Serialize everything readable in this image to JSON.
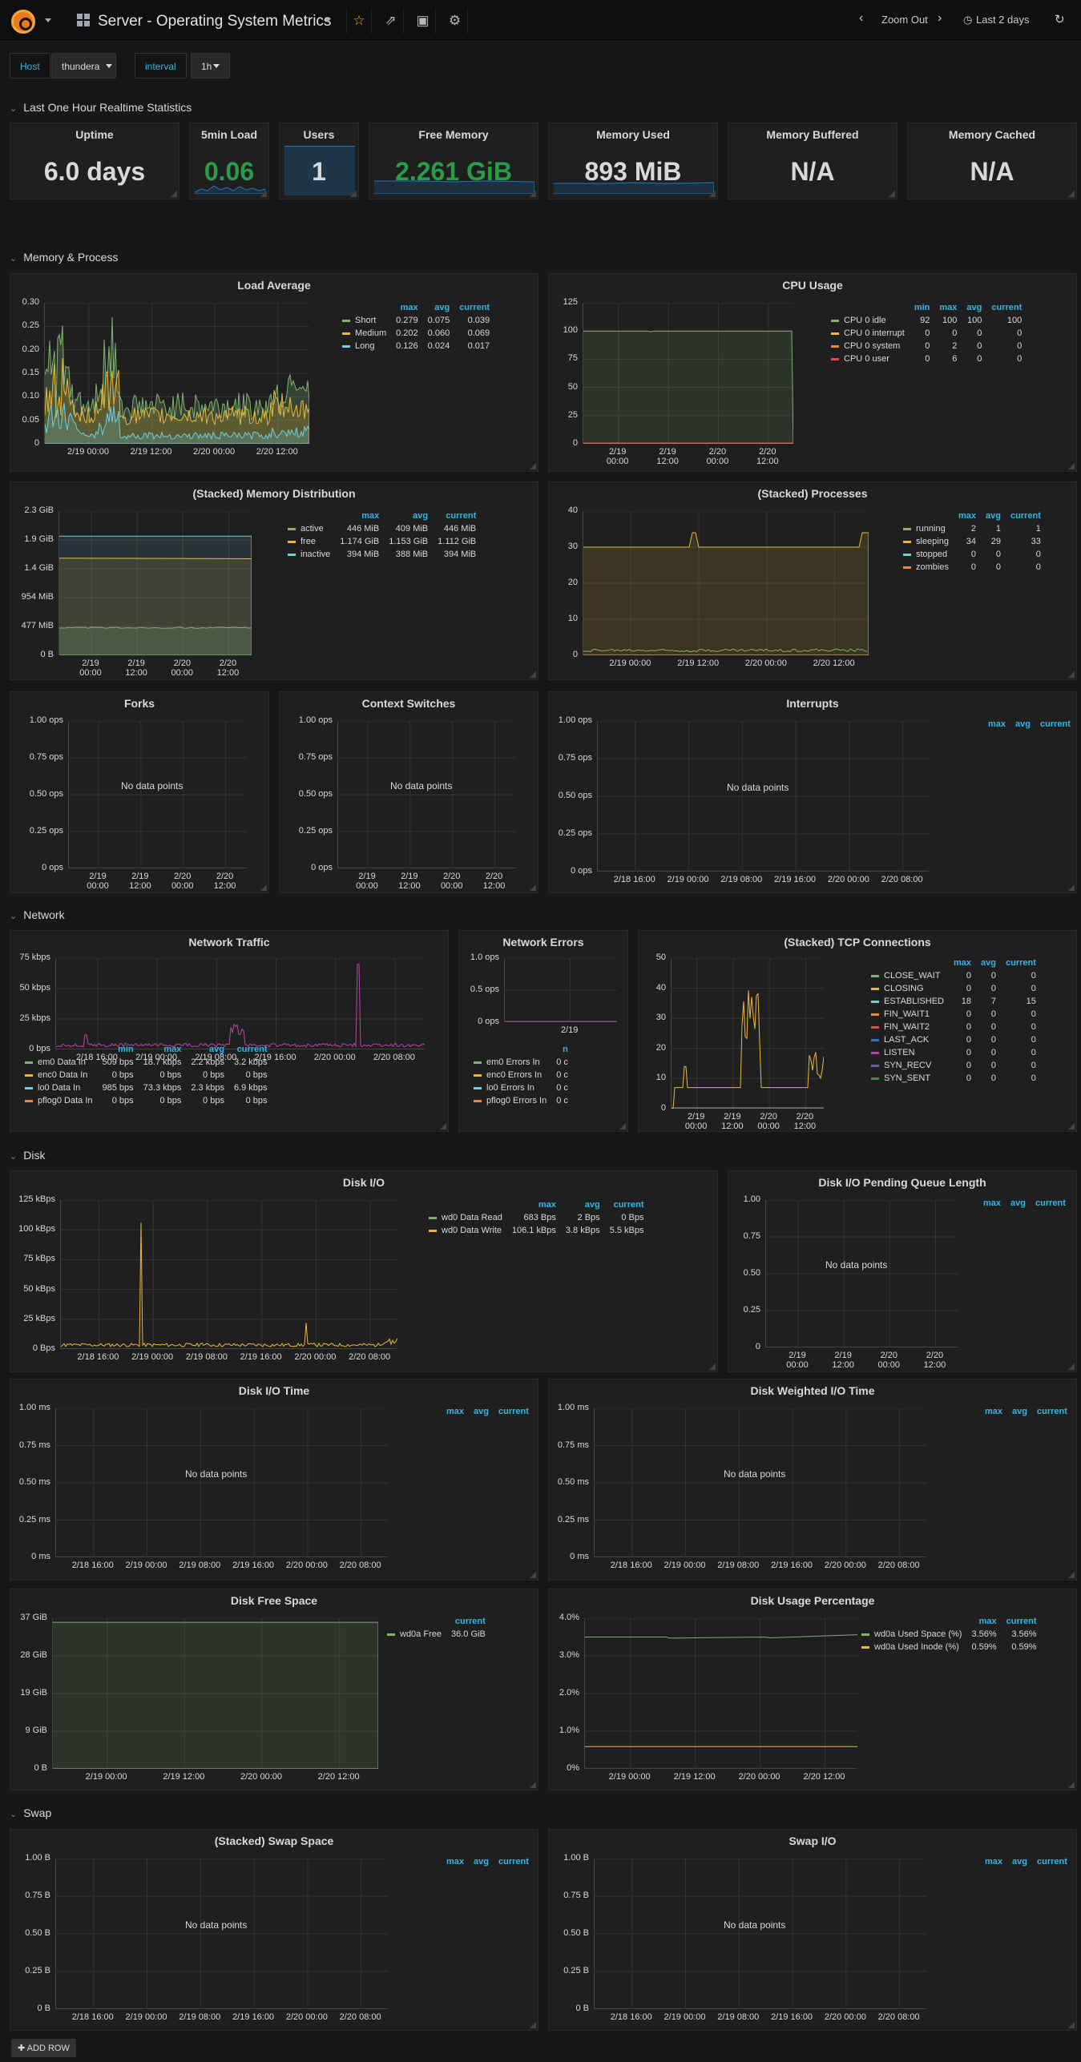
{
  "header": {
    "title": "Server - Operating System Metrics",
    "zoom_out": "Zoom Out",
    "time_range": "Last 2 days"
  },
  "variables": {
    "host_label": "Host",
    "host_value": "thundera",
    "interval_label": "interval",
    "interval_value": "1h"
  },
  "rows": {
    "realtime": "Last One Hour Realtime Statistics",
    "memory": "Memory & Process",
    "network": "Network",
    "disk": "Disk",
    "swap": "Swap"
  },
  "stats": [
    {
      "title": "Uptime",
      "value": "6.0 days",
      "color": "#d8d9da"
    },
    {
      "title": "5min Load",
      "value": "0.06",
      "color": "#299c46"
    },
    {
      "title": "Users",
      "value": "1",
      "color": "#d8d9da"
    },
    {
      "title": "Free Memory",
      "value": "2.261 GiB",
      "color": "#299c46"
    },
    {
      "title": "Memory Used",
      "value": "893 MiB",
      "color": "#d8d9da"
    },
    {
      "title": "Memory Buffered",
      "value": "N/A",
      "color": "#d8d9da"
    },
    {
      "title": "Memory Cached",
      "value": "N/A",
      "color": "#d8d9da"
    }
  ],
  "panels": {
    "load_average": {
      "title": "Load Average",
      "y_ticks": [
        "0.30",
        "0.25",
        "0.20",
        "0.15",
        "0.10",
        "0.05",
        "0"
      ],
      "x_ticks": [
        "2/19 00:00",
        "2/19 12:00",
        "2/20 00:00",
        "2/20 12:00"
      ],
      "legend_headers": [
        "max",
        "avg",
        "current"
      ],
      "legend": [
        {
          "name": "Short",
          "color": "#7eb26d",
          "vals": [
            "0.279",
            "0.075",
            "0.039"
          ]
        },
        {
          "name": "Medium",
          "color": "#eab839",
          "vals": [
            "0.202",
            "0.060",
            "0.069"
          ]
        },
        {
          "name": "Long",
          "color": "#6ed0e0",
          "vals": [
            "0.126",
            "0.024",
            "0.017"
          ]
        }
      ]
    },
    "cpu_usage": {
      "title": "CPU Usage",
      "y_ticks": [
        "125",
        "100",
        "75",
        "50",
        "25",
        "0"
      ],
      "x_ticks": [
        "2/19\n00:00",
        "2/19\n12:00",
        "2/20\n00:00",
        "2/20\n12:00"
      ],
      "legend_headers": [
        "min",
        "max",
        "avg",
        "current"
      ],
      "legend": [
        {
          "name": "CPU 0 idle",
          "color": "#7eb26d",
          "vals": [
            "92",
            "100",
            "100",
            "100"
          ]
        },
        {
          "name": "CPU 0 interrupt",
          "color": "#eab839",
          "vals": [
            "0",
            "0",
            "0",
            "0"
          ]
        },
        {
          "name": "CPU 0 system",
          "color": "#ef843c",
          "vals": [
            "0",
            "2",
            "0",
            "0"
          ]
        },
        {
          "name": "CPU 0 user",
          "color": "#e24d42",
          "vals": [
            "0",
            "6",
            "0",
            "0"
          ]
        }
      ]
    },
    "memory_dist": {
      "title": "(Stacked) Memory Distribution",
      "y_ticks": [
        "2.3 GiB",
        "1.9 GiB",
        "1.4 GiB",
        "954 MiB",
        "477 MiB",
        "0 B"
      ],
      "x_ticks": [
        "2/19\n00:00",
        "2/19\n12:00",
        "2/20\n00:00",
        "2/20\n12:00"
      ],
      "legend_headers": [
        "max",
        "avg",
        "current"
      ],
      "legend": [
        {
          "name": "active",
          "color": "#7eb26d",
          "vals": [
            "446 MiB",
            "409 MiB",
            "446 MiB"
          ]
        },
        {
          "name": "free",
          "color": "#eab839",
          "vals": [
            "1.174 GiB",
            "1.153 GiB",
            "1.112 GiB"
          ]
        },
        {
          "name": "inactive",
          "color": "#6ed0e0",
          "vals": [
            "394 MiB",
            "388 MiB",
            "394 MiB"
          ]
        }
      ]
    },
    "processes": {
      "title": "(Stacked) Processes",
      "y_ticks": [
        "40",
        "30",
        "20",
        "10",
        "0"
      ],
      "x_ticks": [
        "2/19 00:00",
        "2/19 12:00",
        "2/20 00:00",
        "2/20 12:00"
      ],
      "legend_headers": [
        "max",
        "avg",
        "current"
      ],
      "legend": [
        {
          "name": "running",
          "color": "#7eb26d",
          "vals": [
            "2",
            "1",
            "1"
          ]
        },
        {
          "name": "sleeping",
          "color": "#eab839",
          "vals": [
            "34",
            "29",
            "33"
          ]
        },
        {
          "name": "stopped",
          "color": "#6ed0e0",
          "vals": [
            "0",
            "0",
            "0"
          ]
        },
        {
          "name": "zombies",
          "color": "#ef843c",
          "vals": [
            "0",
            "0",
            "0"
          ]
        }
      ]
    },
    "forks": {
      "title": "Forks",
      "nodata": "No data points",
      "y_ticks": [
        "1.00 ops",
        "0.75 ops",
        "0.50 ops",
        "0.25 ops",
        "0 ops"
      ],
      "x_ticks": [
        "2/19\n00:00",
        "2/19\n12:00",
        "2/20\n00:00",
        "2/20\n12:00"
      ]
    },
    "context": {
      "title": "Context Switches",
      "nodata": "No data points",
      "y_ticks": [
        "1.00 ops",
        "0.75 ops",
        "0.50 ops",
        "0.25 ops",
        "0 ops"
      ],
      "x_ticks": [
        "2/19\n00:00",
        "2/19\n12:00",
        "2/20\n00:00",
        "2/20\n12:00"
      ]
    },
    "interrupts": {
      "title": "Interrupts",
      "nodata": "No data points",
      "legend_headers": [
        "max",
        "avg",
        "current"
      ],
      "y_ticks": [
        "1.00 ops",
        "0.75 ops",
        "0.50 ops",
        "0.25 ops",
        "0 ops"
      ],
      "x_ticks": [
        "2/18 16:00",
        "2/19 00:00",
        "2/19 08:00",
        "2/19 16:00",
        "2/20 00:00",
        "2/20 08:00"
      ]
    },
    "net_traffic": {
      "title": "Network Traffic",
      "y_ticks": [
        "75 kbps",
        "50 kbps",
        "25 kbps",
        "0 bps"
      ],
      "x_ticks": [
        "2/18 16:00",
        "2/19 00:00",
        "2/19 08:00",
        "2/19 16:00",
        "2/20 00:00",
        "2/20 08:00"
      ],
      "legend_headers": [
        "min",
        "max",
        "avg",
        "current"
      ],
      "legend": [
        {
          "name": "em0 Data In",
          "color": "#7eb26d",
          "vals": [
            "509 bps",
            "18.7 kbps",
            "2.2 kbps",
            "3.2 kbps"
          ]
        },
        {
          "name": "enc0 Data In",
          "color": "#eab839",
          "vals": [
            "0 bps",
            "0 bps",
            "0 bps",
            "0 bps"
          ]
        },
        {
          "name": "lo0 Data In",
          "color": "#6ed0e0",
          "vals": [
            "985 bps",
            "73.3 kbps",
            "2.3 kbps",
            "6.9 kbps"
          ]
        },
        {
          "name": "pflog0 Data In",
          "color": "#ef843c",
          "vals": [
            "0 bps",
            "0 bps",
            "0 bps",
            "0 bps"
          ]
        }
      ]
    },
    "net_errors": {
      "title": "Network Errors",
      "y_ticks": [
        "1.0 ops",
        "0.5 ops",
        "0 ops"
      ],
      "x_ticks": [
        "2/19"
      ],
      "legend_headers": [
        "n"
      ],
      "legend": [
        {
          "name": "em0 Errors In",
          "color": "#7eb26d",
          "vals": [
            "0 c"
          ]
        },
        {
          "name": "enc0 Errors In",
          "color": "#eab839",
          "vals": [
            "0 c"
          ]
        },
        {
          "name": "lo0 Errors In",
          "color": "#6ed0e0",
          "vals": [
            "0 c"
          ]
        },
        {
          "name": "pflog0 Errors In",
          "color": "#ef843c",
          "vals": [
            "0 c"
          ]
        }
      ]
    },
    "tcp": {
      "title": "(Stacked) TCP Connections",
      "y_ticks": [
        "50",
        "40",
        "30",
        "20",
        "10",
        "0"
      ],
      "x_ticks": [
        "2/19\n00:00",
        "2/19\n12:00",
        "2/20\n00:00",
        "2/20\n12:00"
      ],
      "legend_headers": [
        "max",
        "avg",
        "current"
      ],
      "legend": [
        {
          "name": "CLOSE_WAIT",
          "color": "#7eb26d",
          "vals": [
            "0",
            "0",
            "0"
          ]
        },
        {
          "name": "CLOSING",
          "color": "#eab839",
          "vals": [
            "0",
            "0",
            "0"
          ]
        },
        {
          "name": "ESTABLISHED",
          "color": "#6ed0e0",
          "vals": [
            "18",
            "7",
            "15"
          ]
        },
        {
          "name": "FIN_WAIT1",
          "color": "#ef843c",
          "vals": [
            "0",
            "0",
            "0"
          ]
        },
        {
          "name": "FIN_WAIT2",
          "color": "#e24d42",
          "vals": [
            "0",
            "0",
            "0"
          ]
        },
        {
          "name": "LAST_ACK",
          "color": "#1f78c1",
          "vals": [
            "0",
            "0",
            "0"
          ]
        },
        {
          "name": "LISTEN",
          "color": "#ba43a9",
          "vals": [
            "0",
            "0",
            "0"
          ]
        },
        {
          "name": "SYN_RECV",
          "color": "#705da0",
          "vals": [
            "0",
            "0",
            "0"
          ]
        },
        {
          "name": "SYN_SENT",
          "color": "#508642",
          "vals": [
            "0",
            "0",
            "0"
          ]
        }
      ]
    },
    "disk_io": {
      "title": "Disk I/O",
      "y_ticks": [
        "125 kBps",
        "100 kBps",
        "75 kBps",
        "50 kBps",
        "25 kBps",
        "0 Bps"
      ],
      "x_ticks": [
        "2/18 16:00",
        "2/19 00:00",
        "2/19 08:00",
        "2/19 16:00",
        "2/20 00:00",
        "2/20 08:00"
      ],
      "legend_headers": [
        "max",
        "avg",
        "current"
      ],
      "legend": [
        {
          "name": "wd0 Data Read",
          "color": "#7eb26d",
          "vals": [
            "683 Bps",
            "2 Bps",
            "0 Bps"
          ]
        },
        {
          "name": "wd0 Data Write",
          "color": "#eab839",
          "vals": [
            "106.1 kBps",
            "3.8 kBps",
            "5.5 kBps"
          ]
        }
      ]
    },
    "disk_queue": {
      "title": "Disk I/O Pending Queue Length",
      "nodata": "No data points",
      "legend_headers": [
        "max",
        "avg",
        "current"
      ],
      "y_ticks": [
        "1.00",
        "0.75",
        "0.50",
        "0.25",
        "0"
      ],
      "x_ticks": [
        "2/19\n00:00",
        "2/19\n12:00",
        "2/20\n00:00",
        "2/20\n12:00"
      ]
    },
    "disk_time": {
      "title": "Disk I/O Time",
      "nodata": "No data points",
      "legend_headers": [
        "max",
        "avg",
        "current"
      ],
      "y_ticks": [
        "1.00 ms",
        "0.75 ms",
        "0.50 ms",
        "0.25 ms",
        "0 ms"
      ],
      "x_ticks": [
        "2/18 16:00",
        "2/19 00:00",
        "2/19 08:00",
        "2/19 16:00",
        "2/20 00:00",
        "2/20 08:00"
      ]
    },
    "disk_wtime": {
      "title": "Disk Weighted I/O Time",
      "nodata": "No data points",
      "legend_headers": [
        "max",
        "avg",
        "current"
      ],
      "y_ticks": [
        "1.00 ms",
        "0.75 ms",
        "0.50 ms",
        "0.25 ms",
        "0 ms"
      ],
      "x_ticks": [
        "2/18 16:00",
        "2/19 00:00",
        "2/19 08:00",
        "2/19 16:00",
        "2/20 00:00",
        "2/20 08:00"
      ]
    },
    "disk_free": {
      "title": "Disk Free Space",
      "y_ticks": [
        "37 GiB",
        "28 GiB",
        "19 GiB",
        "9 GiB",
        "0 B"
      ],
      "x_ticks": [
        "2/19 00:00",
        "2/19 12:00",
        "2/20 00:00",
        "2/20 12:00"
      ],
      "legend_headers": [
        "current"
      ],
      "legend": [
        {
          "name": "wd0a Free",
          "color": "#7eb26d",
          "vals": [
            "36.0 GiB"
          ]
        }
      ]
    },
    "disk_pct": {
      "title": "Disk Usage Percentage",
      "y_ticks": [
        "4.0%",
        "3.0%",
        "2.0%",
        "1.0%",
        "0%"
      ],
      "x_ticks": [
        "2/19 00:00",
        "2/19 12:00",
        "2/20 00:00",
        "2/20 12:00"
      ],
      "legend_headers": [
        "max",
        "current"
      ],
      "legend": [
        {
          "name": "wd0a Used Space (%)",
          "color": "#7eb26d",
          "vals": [
            "3.56%",
            "3.56%"
          ]
        },
        {
          "name": "wd0a Used Inode (%)",
          "color": "#eab839",
          "vals": [
            "0.59%",
            "0.59%"
          ]
        }
      ]
    },
    "swap_space": {
      "title": "(Stacked) Swap Space",
      "nodata": "No data points",
      "legend_headers": [
        "max",
        "avg",
        "current"
      ],
      "y_ticks": [
        "1.00 B",
        "0.75 B",
        "0.50 B",
        "0.25 B",
        "0 B"
      ],
      "x_ticks": [
        "2/18 16:00",
        "2/19 00:00",
        "2/19 08:00",
        "2/19 16:00",
        "2/20 00:00",
        "2/20 08:00"
      ]
    },
    "swap_io": {
      "title": "Swap I/O",
      "nodata": "No data points",
      "legend_headers": [
        "max",
        "avg",
        "current"
      ],
      "y_ticks": [
        "1.00 B",
        "0.75 B",
        "0.50 B",
        "0.25 B",
        "0 B"
      ],
      "x_ticks": [
        "2/18 16:00",
        "2/19 00:00",
        "2/19 08:00",
        "2/19 16:00",
        "2/20 00:00",
        "2/20 08:00"
      ]
    }
  },
  "footer": {
    "add_row": "ADD ROW"
  }
}
